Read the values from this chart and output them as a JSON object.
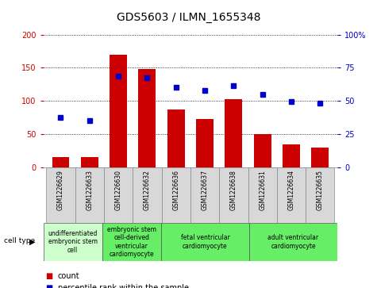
{
  "title": "GDS5603 / ILMN_1655348",
  "samples": [
    "GSM1226629",
    "GSM1226633",
    "GSM1226630",
    "GSM1226632",
    "GSM1226636",
    "GSM1226637",
    "GSM1226638",
    "GSM1226631",
    "GSM1226634",
    "GSM1226635"
  ],
  "counts": [
    15,
    15,
    170,
    148,
    87,
    73,
    102,
    50,
    34,
    29
  ],
  "percentiles": [
    75,
    70,
    137,
    135,
    120,
    116,
    123,
    110,
    99,
    96
  ],
  "bar_color": "#cc0000",
  "dot_color": "#0000cc",
  "ylim_left": [
    0,
    200
  ],
  "ylim_right": [
    0,
    100
  ],
  "yticks_left": [
    0,
    50,
    100,
    150,
    200
  ],
  "yticks_right": [
    0,
    25,
    50,
    75,
    100
  ],
  "yticklabels_right": [
    "0",
    "25",
    "50",
    "75",
    "100%"
  ],
  "cell_groups": [
    {
      "label": "undifferentiated\nembryonic stem\ncell",
      "start": 0,
      "end": 2,
      "color": "#ccffcc"
    },
    {
      "label": "embryonic stem\ncell-derived\nventricular\ncardiomyocyte",
      "start": 2,
      "end": 4,
      "color": "#66ee66"
    },
    {
      "label": "fetal ventricular\ncardiomyocyte",
      "start": 4,
      "end": 7,
      "color": "#66ee66"
    },
    {
      "label": "adult ventricular\ncardiomyocyte",
      "start": 7,
      "end": 10,
      "color": "#66ee66"
    }
  ],
  "cell_type_label": "cell type",
  "legend_count_label": "count",
  "legend_percentile_label": "percentile rank within the sample",
  "background_color": "#ffffff",
  "title_fontsize": 10,
  "tick_fontsize": 7,
  "cell_label_fontsize": 5.5
}
